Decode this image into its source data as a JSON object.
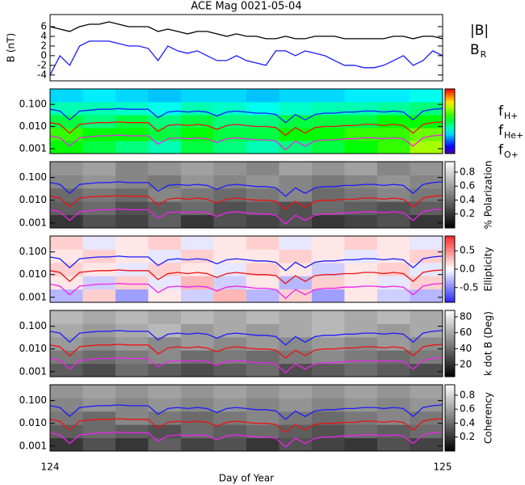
{
  "chart_data": [
    {
      "type": "line",
      "title": "ACE Mag 0021-05-04",
      "ylabel": "B (nT)",
      "x": [
        124.0,
        124.025,
        124.05,
        124.075,
        124.1,
        124.125,
        124.15,
        124.175,
        124.2,
        124.225,
        124.25,
        124.275,
        124.3,
        124.325,
        124.35,
        124.375,
        124.4,
        124.425,
        124.45,
        124.475,
        124.5,
        124.525,
        124.55,
        124.575,
        124.6,
        124.625,
        124.65,
        124.675,
        124.7,
        124.725,
        124.75,
        124.775,
        124.8,
        124.825,
        124.85,
        124.875,
        124.9,
        124.925,
        124.95,
        124.975,
        125.0
      ],
      "xlim": [
        124,
        125
      ],
      "ylim": [
        -5.2,
        8.5
      ],
      "yticks": [
        -4,
        -2,
        0,
        2,
        4,
        6
      ],
      "series": [
        {
          "name": "|B|",
          "color": "#000000",
          "values": [
            6,
            5.5,
            5,
            6,
            6.5,
            6.5,
            7,
            6.5,
            6,
            6,
            6,
            5,
            5.5,
            5,
            4.5,
            5,
            5,
            4.5,
            4,
            4.5,
            4,
            4,
            3.5,
            3.5,
            4,
            3.5,
            3.5,
            4,
            4,
            4,
            3.5,
            3.5,
            3.5,
            3.5,
            3.5,
            4,
            4,
            3.5,
            4,
            4,
            3.5
          ]
        },
        {
          "name": "B",
          "name_subscript": "R",
          "color": "#1a1aff",
          "values": [
            -4,
            0,
            -2,
            2,
            3,
            3,
            3,
            2.5,
            2,
            2,
            1.5,
            -1,
            2,
            1,
            0.5,
            1,
            0,
            -1,
            -1,
            0,
            -1,
            -1.5,
            -2,
            1,
            1,
            0,
            1,
            0.5,
            0,
            -1,
            -2,
            -2,
            -2.5,
            -2.5,
            -2,
            -1,
            0,
            -2,
            -1,
            1,
            0
          ]
        }
      ]
    },
    {
      "type": "heatmap",
      "colormap": "rainbow",
      "zlim": [
        0,
        1
      ],
      "log_y": true,
      "ylim": [
        0.0006,
        0.5
      ],
      "yticks": [
        {
          "value": 0.001,
          "label": "0.001"
        },
        {
          "value": 0.01,
          "label": "0.010"
        },
        {
          "value": 0.1,
          "label": "0.100"
        }
      ],
      "z": [
        [
          0.55,
          0.5,
          0.45,
          0.4,
          0.5,
          0.45,
          0.4,
          0.45,
          0.5,
          0.55,
          0.6,
          0.7
        ],
        [
          0.6,
          0.55,
          0.55,
          0.5,
          0.55,
          0.5,
          0.5,
          0.55,
          0.55,
          0.6,
          0.6,
          0.65
        ],
        [
          0.5,
          0.45,
          0.5,
          0.45,
          0.5,
          0.45,
          0.45,
          0.5,
          0.5,
          0.5,
          0.55,
          0.55
        ],
        [
          0.4,
          0.4,
          0.38,
          0.35,
          0.4,
          0.38,
          0.35,
          0.38,
          0.4,
          0.4,
          0.42,
          0.45
        ],
        [
          0.3,
          0.32,
          0.3,
          0.28,
          0.3,
          0.3,
          0.28,
          0.3,
          0.3,
          0.32,
          0.32,
          0.35
        ]
      ],
      "series": [
        {
          "name": "f",
          "name_subscript": "H+",
          "color": "#1a1aff",
          "values": [
            0.06,
            0.05,
            0.02,
            0.05,
            0.055,
            0.06,
            0.06,
            0.065,
            0.06,
            0.06,
            0.06,
            0.025,
            0.045,
            0.05,
            0.045,
            0.05,
            0.045,
            0.03,
            0.045,
            0.05,
            0.045,
            0.04,
            0.04,
            0.035,
            0.015,
            0.035,
            0.02,
            0.035,
            0.04,
            0.04,
            0.045,
            0.045,
            0.05,
            0.05,
            0.045,
            0.05,
            0.045,
            0.02,
            0.05,
            0.06,
            0.065
          ]
        },
        {
          "name": "f",
          "name_subscript": "He+",
          "color": "#ee1111",
          "values": [
            0.015,
            0.0125,
            0.005,
            0.0125,
            0.014,
            0.015,
            0.015,
            0.016,
            0.015,
            0.015,
            0.015,
            0.006,
            0.011,
            0.0125,
            0.011,
            0.0125,
            0.011,
            0.0075,
            0.011,
            0.0125,
            0.011,
            0.01,
            0.01,
            0.009,
            0.004,
            0.009,
            0.005,
            0.009,
            0.01,
            0.01,
            0.011,
            0.011,
            0.0125,
            0.0125,
            0.011,
            0.0125,
            0.011,
            0.005,
            0.0125,
            0.015,
            0.016
          ]
        },
        {
          "name": "f",
          "name_subscript": "O+",
          "color": "#ee22ee",
          "values": [
            0.0038,
            0.0031,
            0.0013,
            0.0031,
            0.0034,
            0.0038,
            0.0038,
            0.0041,
            0.0038,
            0.0038,
            0.0038,
            0.0016,
            0.0028,
            0.0031,
            0.0028,
            0.0031,
            0.0028,
            0.0019,
            0.0028,
            0.0031,
            0.0028,
            0.0025,
            0.0025,
            0.0022,
            0.0009,
            0.0022,
            0.0013,
            0.0022,
            0.0025,
            0.0025,
            0.0028,
            0.0028,
            0.0031,
            0.0031,
            0.0028,
            0.0031,
            0.0028,
            0.0013,
            0.0031,
            0.0038,
            0.0041
          ]
        }
      ]
    },
    {
      "type": "heatmap",
      "colormap": "gray",
      "zlim": [
        0,
        0.95
      ],
      "log_y": true,
      "ylim": [
        0.0006,
        0.5
      ],
      "yticks": [
        {
          "value": 0.001,
          "label": "0.001"
        },
        {
          "value": 0.01,
          "label": "0.010"
        },
        {
          "value": 0.1,
          "label": "0.100"
        }
      ],
      "colorbar_label": "% Polarization",
      "cticks": [
        0.2,
        0.4,
        0.6,
        0.8
      ],
      "z": [
        [
          0.2,
          0.3,
          0.25,
          0.35,
          0.2,
          0.3,
          0.25,
          0.3,
          0.2,
          0.25,
          0.3,
          0.2
        ],
        [
          0.35,
          0.4,
          0.3,
          0.35,
          0.4,
          0.3,
          0.35,
          0.3,
          0.4,
          0.35,
          0.3,
          0.35
        ],
        [
          0.4,
          0.45,
          0.4,
          0.5,
          0.45,
          0.4,
          0.45,
          0.5,
          0.4,
          0.45,
          0.5,
          0.45
        ],
        [
          0.5,
          0.55,
          0.5,
          0.45,
          0.55,
          0.5,
          0.55,
          0.5,
          0.45,
          0.5,
          0.55,
          0.5
        ],
        [
          0.55,
          0.6,
          0.5,
          0.55,
          0.6,
          0.55,
          0.5,
          0.6,
          0.55,
          0.6,
          0.5,
          0.55
        ]
      ]
    },
    {
      "type": "heatmap",
      "colormap": "bwr",
      "zlim": [
        -0.9,
        0.9
      ],
      "log_y": true,
      "ylim": [
        0.0006,
        0.5
      ],
      "yticks": [
        {
          "value": 0.001,
          "label": "0.001"
        },
        {
          "value": 0.01,
          "label": "0.010"
        },
        {
          "value": 0.1,
          "label": "0.100"
        }
      ],
      "colorbar_label": "Ellipticity",
      "cticks": [
        -0.5,
        {
          "value": 0,
          "label": "0.0"
        },
        0.5
      ],
      "z": [
        [
          -0.3,
          0.2,
          -0.4,
          0.1,
          -0.2,
          0.3,
          -0.3,
          0.2,
          -0.4,
          0.1,
          -0.2,
          -0.3
        ],
        [
          0.1,
          -0.2,
          0.2,
          -0.1,
          0.3,
          -0.2,
          0.1,
          -0.3,
          0.2,
          0.1,
          -0.1,
          0.2
        ],
        [
          0.2,
          0.1,
          -0.1,
          0.2,
          0.1,
          -0.1,
          0.2,
          0.1,
          -0.2,
          0.1,
          0.2,
          -0.1
        ],
        [
          0.1,
          0.2,
          0.1,
          -0.1,
          0.2,
          0.1,
          0.1,
          0.2,
          0.1,
          -0.1,
          0.1,
          0.2
        ],
        [
          0.2,
          -0.1,
          0.1,
          0.2,
          -0.1,
          0.1,
          0.2,
          -0.1,
          0.1,
          0.2,
          0.1,
          -0.1
        ]
      ]
    },
    {
      "type": "heatmap",
      "colormap": "gray",
      "zlim": [
        5,
        88
      ],
      "log_y": true,
      "ylim": [
        0.0006,
        0.5
      ],
      "yticks": [
        {
          "value": 0.001,
          "label": "0.001"
        },
        {
          "value": 0.01,
          "label": "0.010"
        },
        {
          "value": 0.1,
          "label": "0.100"
        }
      ],
      "colorbar_label": "k dot B (Deg)",
      "cticks": [
        20,
        40,
        60,
        80
      ],
      "z": [
        [
          35,
          30,
          40,
          35,
          30,
          35,
          40,
          30,
          35,
          40,
          35,
          30
        ],
        [
          45,
          40,
          45,
          50,
          40,
          45,
          40,
          45,
          50,
          45,
          40,
          45
        ],
        [
          55,
          50,
          55,
          50,
          55,
          50,
          55,
          50,
          55,
          50,
          55,
          50
        ],
        [
          60,
          55,
          60,
          65,
          55,
          60,
          55,
          60,
          65,
          60,
          55,
          60
        ],
        [
          65,
          60,
          65,
          60,
          65,
          60,
          65,
          60,
          65,
          60,
          65,
          60
        ]
      ]
    },
    {
      "type": "heatmap",
      "colormap": "gray",
      "zlim": [
        0,
        0.95
      ],
      "log_y": true,
      "ylim": [
        0.0006,
        0.5
      ],
      "yticks": [
        {
          "value": 0.001,
          "label": "0.001"
        },
        {
          "value": 0.01,
          "label": "0.010"
        },
        {
          "value": 0.1,
          "label": "0.100"
        }
      ],
      "colorbar_label": "Coherency",
      "cticks": [
        0.2,
        0.4,
        0.6,
        0.8
      ],
      "z": [
        [
          0.2,
          0.3,
          0.2,
          0.35,
          0.25,
          0.3,
          0.2,
          0.3,
          0.25,
          0.2,
          0.3,
          0.25
        ],
        [
          0.35,
          0.4,
          0.35,
          0.3,
          0.4,
          0.35,
          0.4,
          0.35,
          0.3,
          0.4,
          0.35,
          0.4
        ],
        [
          0.45,
          0.4,
          0.5,
          0.45,
          0.4,
          0.45,
          0.5,
          0.45,
          0.4,
          0.45,
          0.5,
          0.45
        ],
        [
          0.5,
          0.55,
          0.5,
          0.55,
          0.5,
          0.55,
          0.5,
          0.55,
          0.5,
          0.55,
          0.5,
          0.55
        ],
        [
          0.55,
          0.6,
          0.55,
          0.6,
          0.55,
          0.6,
          0.55,
          0.6,
          0.55,
          0.6,
          0.55,
          0.6
        ]
      ],
      "xlim": [
        124,
        125
      ],
      "xticks": [
        124,
        125
      ],
      "xlabel": "Day of Year"
    }
  ]
}
